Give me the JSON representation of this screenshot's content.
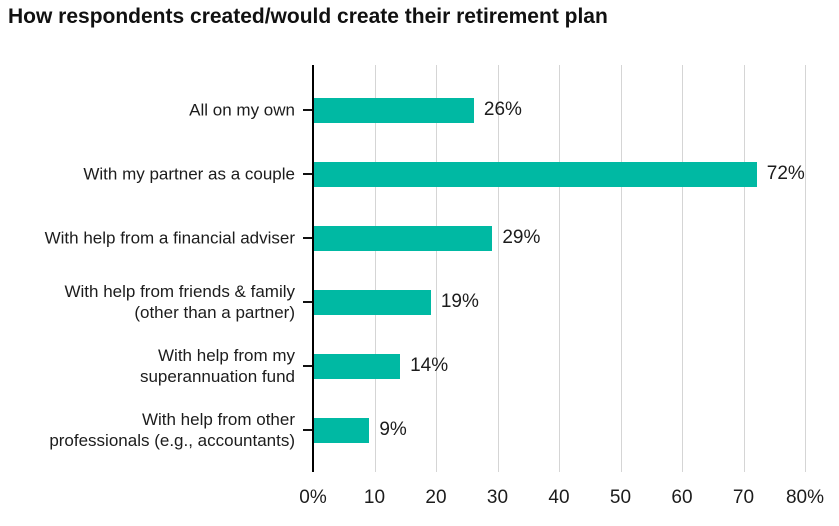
{
  "chart_data": {
    "type": "bar",
    "orientation": "horizontal",
    "title": "How respondents created/would create their retirement plan",
    "categories": [
      "All on my own",
      "With my partner as a couple",
      "With help from a financial adviser",
      "With help from friends & family (other than a partner)",
      "With help from my superannuation fund",
      "With help from other professionals (e.g., accountants)"
    ],
    "category_lines": [
      [
        "All on my own"
      ],
      [
        "With my partner as a couple"
      ],
      [
        "With help from a financial adviser"
      ],
      [
        "With help from friends & family",
        "(other than a partner)"
      ],
      [
        "With help from my",
        "superannuation fund"
      ],
      [
        "With help from other",
        "professionals (e.g., accountants)"
      ]
    ],
    "values": [
      26,
      72,
      29,
      19,
      14,
      9
    ],
    "value_labels": [
      "26%",
      "72%",
      "29%",
      "19%",
      "14%",
      "9%"
    ],
    "xlabel": "",
    "ylabel": "",
    "xlim": [
      0,
      80
    ],
    "x_tick_values": [
      0,
      10,
      20,
      30,
      40,
      50,
      60,
      70,
      80
    ],
    "x_tick_labels": [
      "0%",
      "10",
      "20",
      "30",
      "40",
      "50",
      "60",
      "70",
      "80%"
    ],
    "grid": "vertical-gridlines",
    "legend": "none",
    "colors": {
      "bar": "#00B9A3",
      "gridline": "#D5D5D5",
      "axis": "#000000",
      "tick": "#111111",
      "title_text": "#111111",
      "label_text": "#1C1C1C"
    }
  }
}
